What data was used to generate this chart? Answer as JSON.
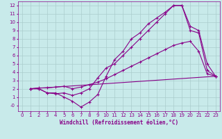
{
  "background_color": "#c8eaea",
  "grid_color": "#aacccc",
  "line_color": "#880088",
  "marker": "+",
  "xlabel": "Windchill (Refroidissement éolien,°C)",
  "xlim": [
    -0.5,
    23.5
  ],
  "ylim": [
    -0.7,
    12.5
  ],
  "xticks": [
    0,
    1,
    2,
    3,
    4,
    5,
    6,
    7,
    8,
    9,
    10,
    11,
    12,
    13,
    14,
    15,
    16,
    17,
    18,
    19,
    20,
    21,
    22,
    23
  ],
  "ytick_labels": [
    "-0",
    "1",
    "2",
    "3",
    "4",
    "5",
    "6",
    "7",
    "8",
    "9",
    "10",
    "11",
    "12"
  ],
  "ytick_vals": [
    0,
    1,
    2,
    3,
    4,
    5,
    6,
    7,
    8,
    9,
    10,
    11,
    12
  ],
  "lines": [
    {
      "x": [
        1,
        2,
        3,
        4,
        5,
        6,
        7,
        8,
        9,
        10,
        11,
        12,
        13,
        14,
        15,
        16,
        17,
        18,
        19,
        20,
        21,
        22,
        23
      ],
      "y": [
        2,
        2,
        1.5,
        1.5,
        1,
        0.5,
        -0.2,
        0.4,
        1.3,
        3.5,
        5.5,
        6.5,
        8.0,
        8.7,
        9.8,
        10.5,
        11.2,
        12.0,
        12.0,
        9.0,
        8.7,
        4.2,
        3.5
      ]
    },
    {
      "x": [
        1,
        2,
        3,
        4,
        5,
        6,
        7,
        8,
        9,
        10,
        11,
        12,
        13,
        14,
        15,
        16,
        17,
        18,
        19,
        20,
        21,
        22,
        23
      ],
      "y": [
        2,
        2,
        1.5,
        1.4,
        1.5,
        1.2,
        1.5,
        2.0,
        3.3,
        4.5,
        5.0,
        6.0,
        7.0,
        8.0,
        9.0,
        10.0,
        11.0,
        12.0,
        12.0,
        9.5,
        9.0,
        5.0,
        3.5
      ]
    },
    {
      "x": [
        1,
        23
      ],
      "y": [
        2,
        3.5
      ]
    },
    {
      "x": [
        1,
        2,
        3,
        4,
        5,
        6,
        7,
        8,
        9,
        10,
        11,
        12,
        13,
        14,
        15,
        16,
        17,
        18,
        19,
        20,
        21,
        22,
        23
      ],
      "y": [
        2,
        2.1,
        2.1,
        2.2,
        2.3,
        2.0,
        2.2,
        2.5,
        2.8,
        3.2,
        3.7,
        4.2,
        4.7,
        5.2,
        5.7,
        6.2,
        6.7,
        7.2,
        7.5,
        7.7,
        6.5,
        3.8,
        3.5
      ]
    }
  ]
}
